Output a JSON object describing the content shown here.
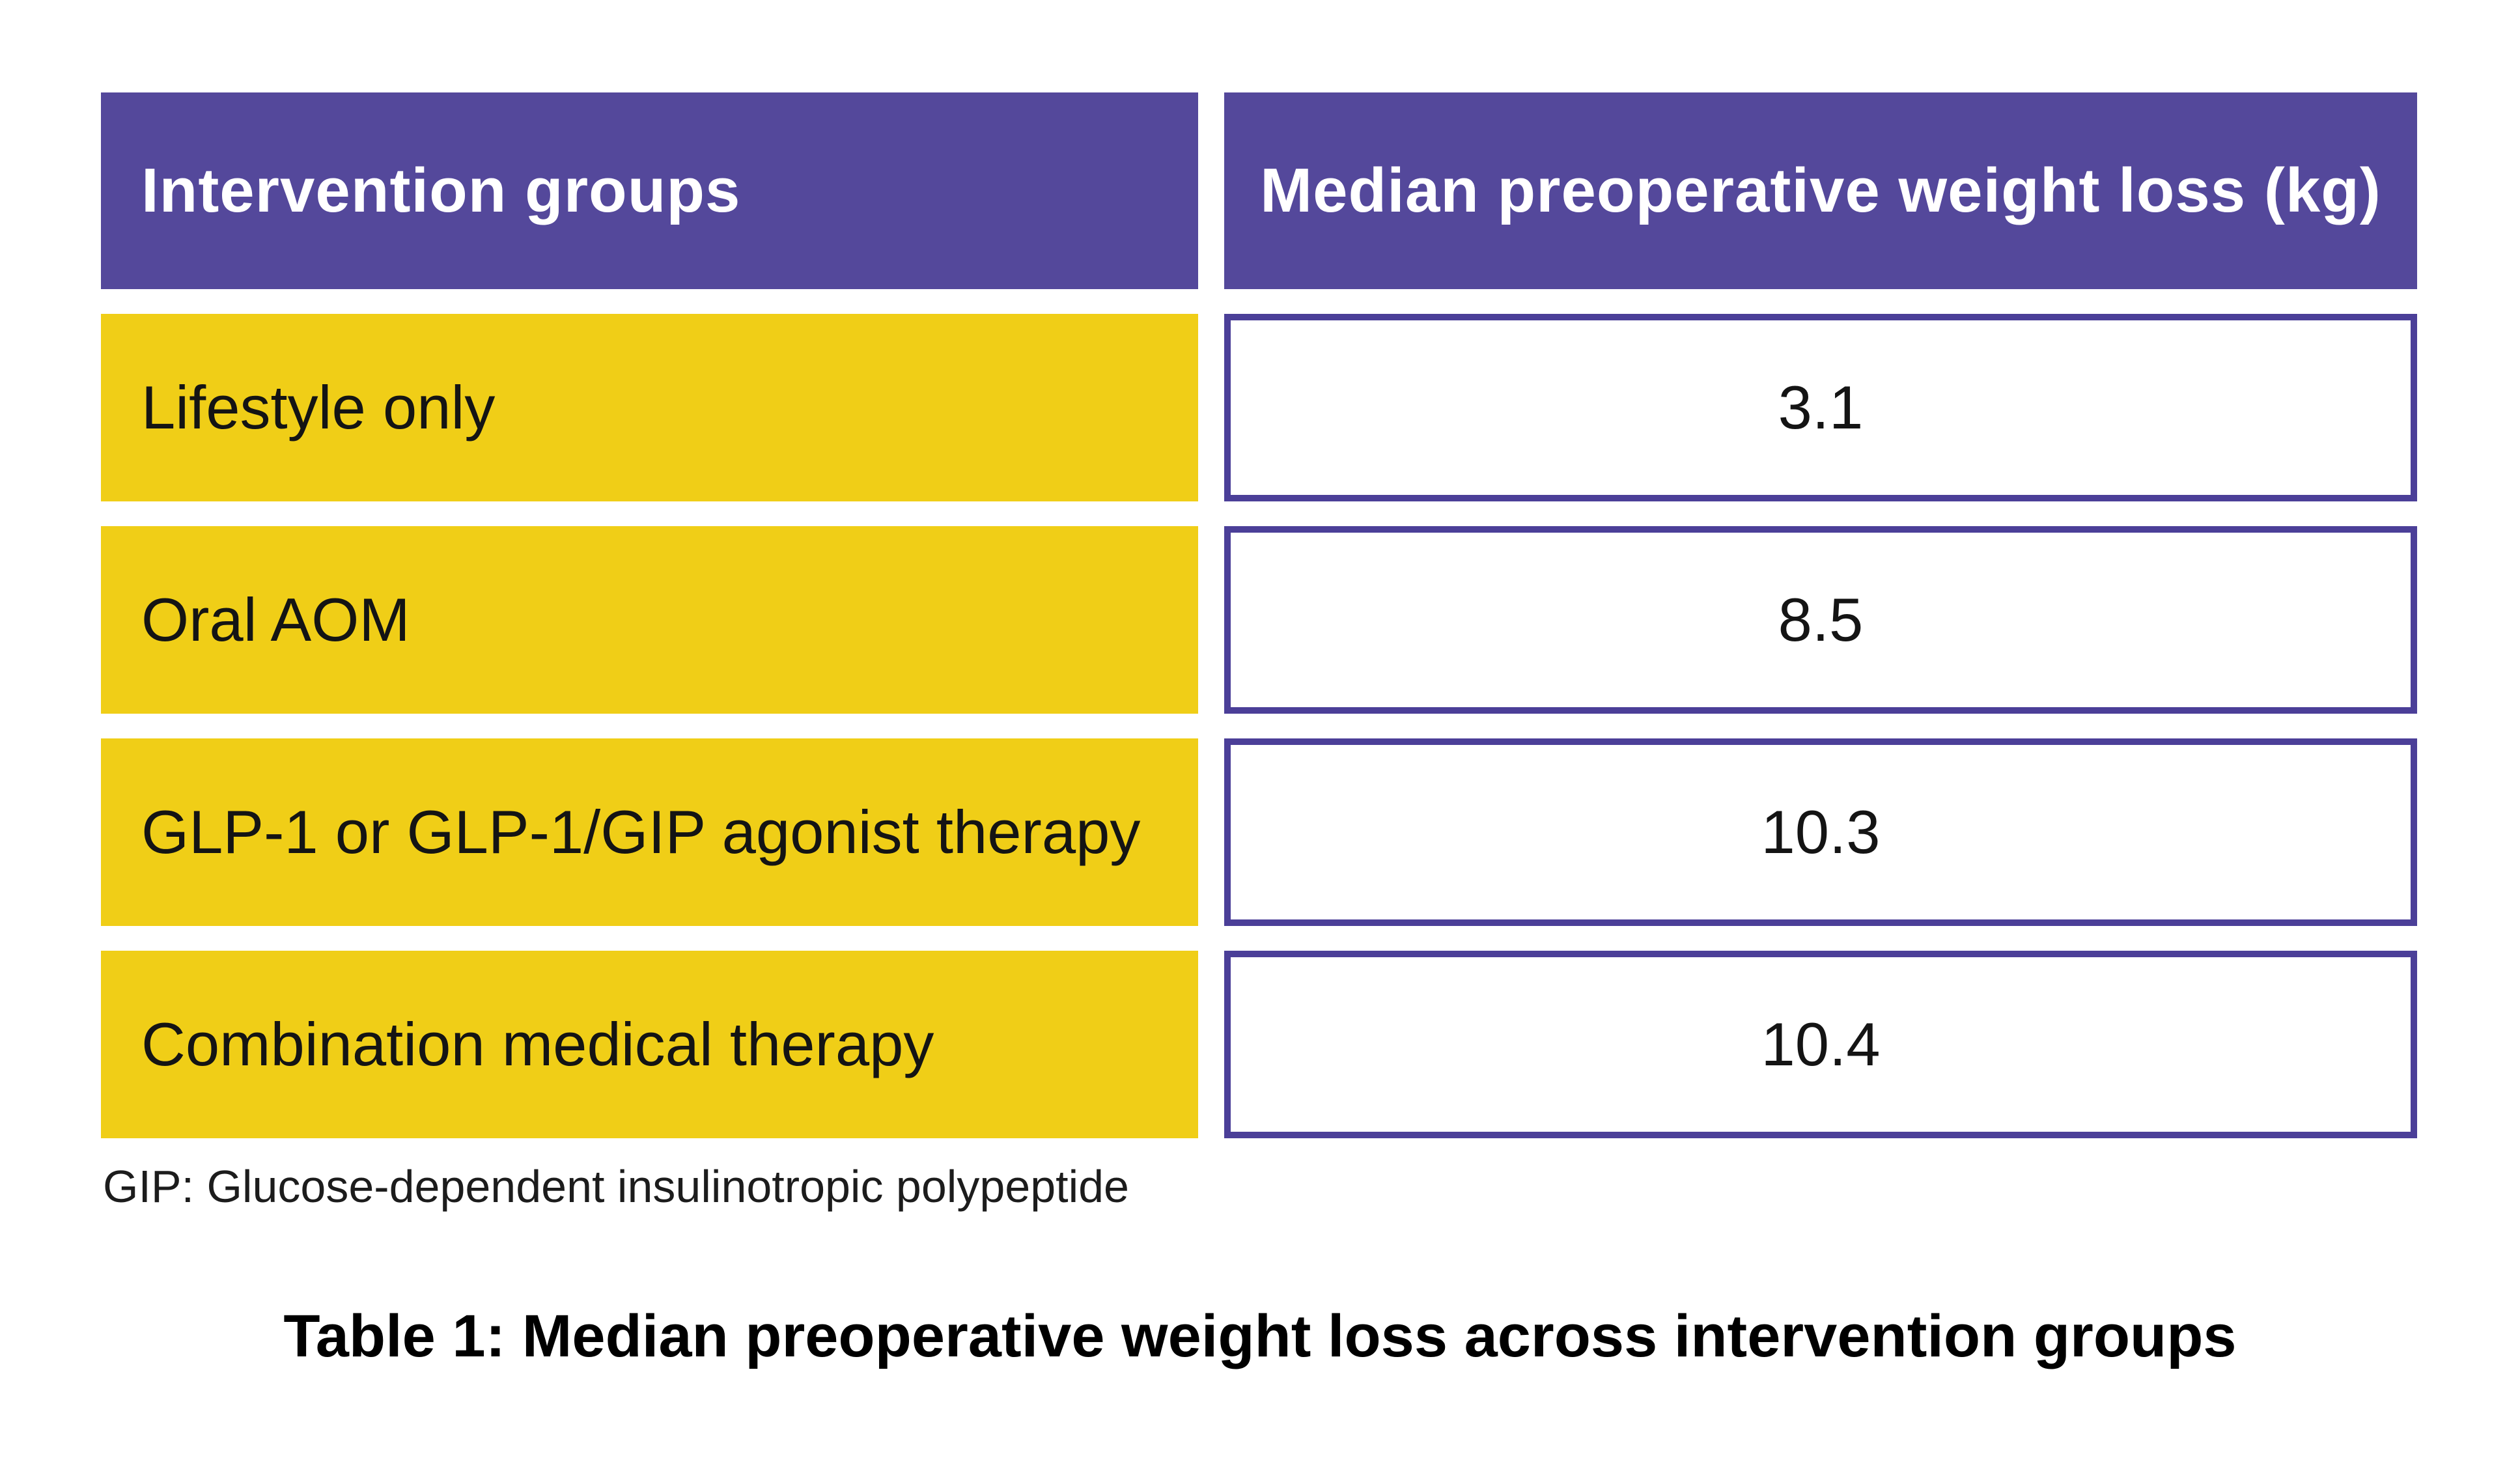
{
  "colors": {
    "header_purple": "#54489B",
    "value_border_purple": "#4B3F98",
    "row_yellow": "#F0CE17",
    "header_text": "#FFFFFF",
    "body_text": "#141414",
    "background": "#FFFFFF"
  },
  "table": {
    "columns": [
      "Intervention groups",
      "Median preoperative weight loss (kg)"
    ],
    "rows": [
      {
        "label": "Lifestyle only",
        "value": "3.1"
      },
      {
        "label": "Oral AOM",
        "value": "8.5"
      },
      {
        "label": "GLP-1 or GLP-1/GIP agonist therapy",
        "value": "10.3"
      },
      {
        "label": "Combination medical therapy",
        "value": "10.4"
      }
    ]
  },
  "footnote": "GIP: Glucose-dependent insulinotropic polypeptide",
  "caption": "Table 1: Median preoperative weight loss across intervention groups",
  "chart_data": {
    "type": "table",
    "title": "Table 1: Median preoperative weight loss across intervention groups",
    "columns": [
      "Intervention groups",
      "Median preoperative weight loss (kg)"
    ],
    "rows": [
      [
        "Lifestyle only",
        3.1
      ],
      [
        "Oral AOM",
        8.5
      ],
      [
        "GLP-1 or GLP-1/GIP agonist therapy",
        10.3
      ],
      [
        "Combination medical therapy",
        10.4
      ]
    ],
    "footnote": "GIP: Glucose-dependent insulinotropic polypeptide",
    "value_unit": "kg"
  }
}
